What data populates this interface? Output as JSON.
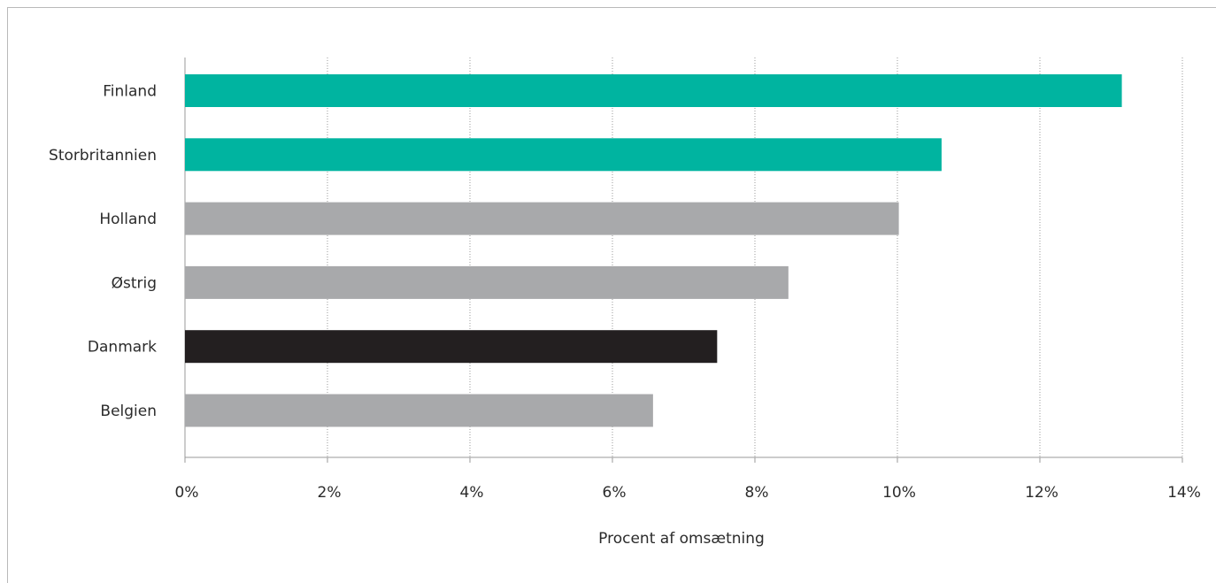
{
  "chart_data": {
    "type": "bar",
    "orientation": "horizontal",
    "categories": [
      "Finland",
      "Storbritannien",
      "Holland",
      "Østrig",
      "Danmark",
      "Belgien"
    ],
    "values": [
      13.15,
      10.62,
      10.02,
      8.47,
      7.47,
      6.57
    ],
    "bar_colors": [
      "#00b4a0",
      "#00b4a0",
      "#a8a9ab",
      "#a8a9ab",
      "#231f20",
      "#a8a9ab"
    ],
    "xlabel": "Procent af omsætning",
    "ylabel": "",
    "xlim": [
      0,
      14
    ],
    "xticks": [
      0,
      2,
      4,
      6,
      8,
      10,
      12,
      14
    ],
    "xtick_labels": [
      "0%",
      "2%",
      "4%",
      "6%",
      "8%",
      "10%",
      "12%",
      "14%"
    ],
    "grid": "vertical dotted",
    "legend": "none"
  }
}
